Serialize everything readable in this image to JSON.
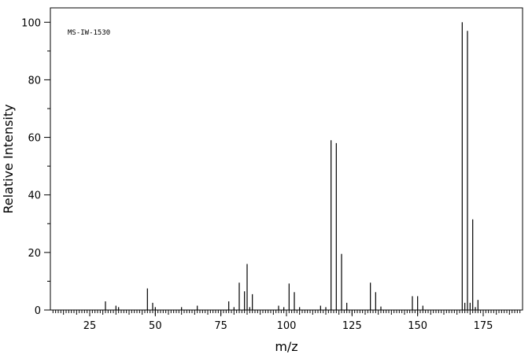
{
  "chart_data": {
    "type": "bar",
    "annotation": "MS-IW-1530",
    "xlabel": "m/z",
    "ylabel": "Relative Intensity",
    "xlim": [
      10,
      190
    ],
    "ylim": [
      0,
      105
    ],
    "x_ticks": [
      25,
      50,
      75,
      100,
      125,
      150,
      175
    ],
    "y_ticks": [
      0,
      20,
      40,
      60,
      80,
      100
    ],
    "grid": false,
    "peaks": [
      {
        "mz": 31,
        "intensity": 3
      },
      {
        "mz": 35,
        "intensity": 1.5
      },
      {
        "mz": 36,
        "intensity": 1
      },
      {
        "mz": 47,
        "intensity": 7.5
      },
      {
        "mz": 49,
        "intensity": 2.5
      },
      {
        "mz": 50,
        "intensity": 1
      },
      {
        "mz": 60,
        "intensity": 1
      },
      {
        "mz": 66,
        "intensity": 1.5
      },
      {
        "mz": 78,
        "intensity": 3
      },
      {
        "mz": 80,
        "intensity": 1
      },
      {
        "mz": 82,
        "intensity": 9.5
      },
      {
        "mz": 84,
        "intensity": 6.5
      },
      {
        "mz": 85,
        "intensity": 16
      },
      {
        "mz": 86,
        "intensity": 1
      },
      {
        "mz": 87,
        "intensity": 5.5
      },
      {
        "mz": 97,
        "intensity": 1.5
      },
      {
        "mz": 99,
        "intensity": 1
      },
      {
        "mz": 101,
        "intensity": 9.2
      },
      {
        "mz": 103,
        "intensity": 6.2
      },
      {
        "mz": 105,
        "intensity": 1
      },
      {
        "mz": 113,
        "intensity": 1.5
      },
      {
        "mz": 115,
        "intensity": 1
      },
      {
        "mz": 117,
        "intensity": 59
      },
      {
        "mz": 119,
        "intensity": 58
      },
      {
        "mz": 121,
        "intensity": 19.5
      },
      {
        "mz": 123,
        "intensity": 2.5
      },
      {
        "mz": 132,
        "intensity": 9.5
      },
      {
        "mz": 134,
        "intensity": 6.2
      },
      {
        "mz": 136,
        "intensity": 1.2
      },
      {
        "mz": 148,
        "intensity": 4.8
      },
      {
        "mz": 150,
        "intensity": 4.8
      },
      {
        "mz": 152,
        "intensity": 1.5
      },
      {
        "mz": 167,
        "intensity": 100
      },
      {
        "mz": 168,
        "intensity": 2.5
      },
      {
        "mz": 169,
        "intensity": 97
      },
      {
        "mz": 170,
        "intensity": 2.5
      },
      {
        "mz": 171,
        "intensity": 31.5
      },
      {
        "mz": 172,
        "intensity": 1
      },
      {
        "mz": 173,
        "intensity": 3.5
      }
    ]
  }
}
